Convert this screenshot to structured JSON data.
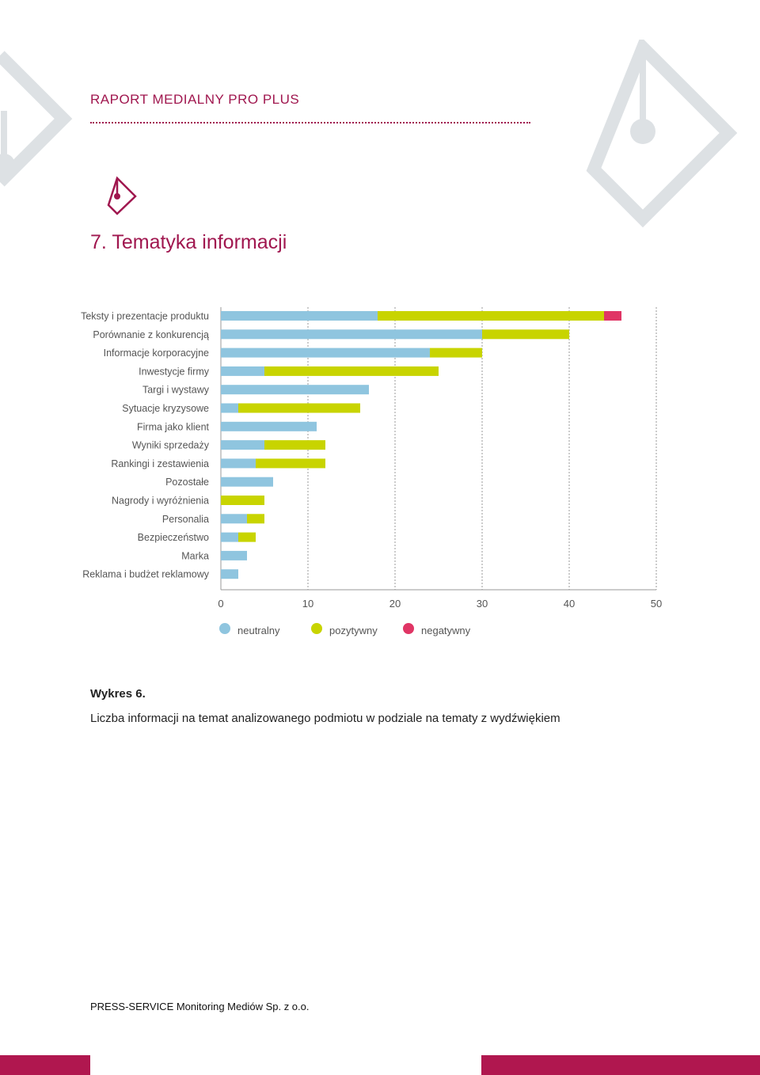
{
  "header": {
    "title": "RAPORT MEDIALNY PRO PLUS"
  },
  "section": {
    "title": "7. Tematyka informacji"
  },
  "colors": {
    "accent": "#a0174f",
    "neutral": "#8fc5df",
    "positive": "#c8d400",
    "negative": "#e03565"
  },
  "chart_data": {
    "type": "bar",
    "orientation": "horizontal",
    "stacked": true,
    "categories": [
      "Teksty i prezentacje produktu",
      "Porównanie z konkurencją",
      "Informacje korporacyjne",
      "Inwestycje firmy",
      "Targi i wystawy",
      "Sytuacje kryzysowe",
      "Firma jako klient",
      "Wyniki sprzedaży",
      "Rankingi i zestawienia",
      "Pozostałe",
      "Nagrody i wyróżnienia",
      "Personalia",
      "Bezpieczeństwo",
      "Marka",
      "Reklama i budżet reklamowy"
    ],
    "series": [
      {
        "name": "neutralny",
        "color": "#8fc5df",
        "values": [
          18,
          30,
          24,
          5,
          17,
          2,
          11,
          5,
          4,
          6,
          0,
          3,
          2,
          3,
          2
        ]
      },
      {
        "name": "pozytywny",
        "color": "#c8d400",
        "values": [
          26,
          10,
          6,
          20,
          0,
          14,
          0,
          7,
          8,
          0,
          5,
          2,
          2,
          0,
          0
        ]
      },
      {
        "name": "negatywny",
        "color": "#e03565",
        "values": [
          2,
          0,
          0,
          0,
          0,
          0,
          0,
          0,
          0,
          0,
          0,
          0,
          0,
          0,
          0
        ]
      }
    ],
    "xlim": [
      0,
      50
    ],
    "xticks": [
      "0",
      "10",
      "20",
      "30",
      "40",
      "50"
    ],
    "grid": true,
    "legend_position": "bottom"
  },
  "caption": {
    "title": "Wykres 6.",
    "text": "Liczba informacji na temat analizowanego podmiotu w podziale na tematy z wydźwiękiem"
  },
  "footer": {
    "company": "PRESS-SERVICE Monitoring Mediów Sp. z o.o."
  }
}
